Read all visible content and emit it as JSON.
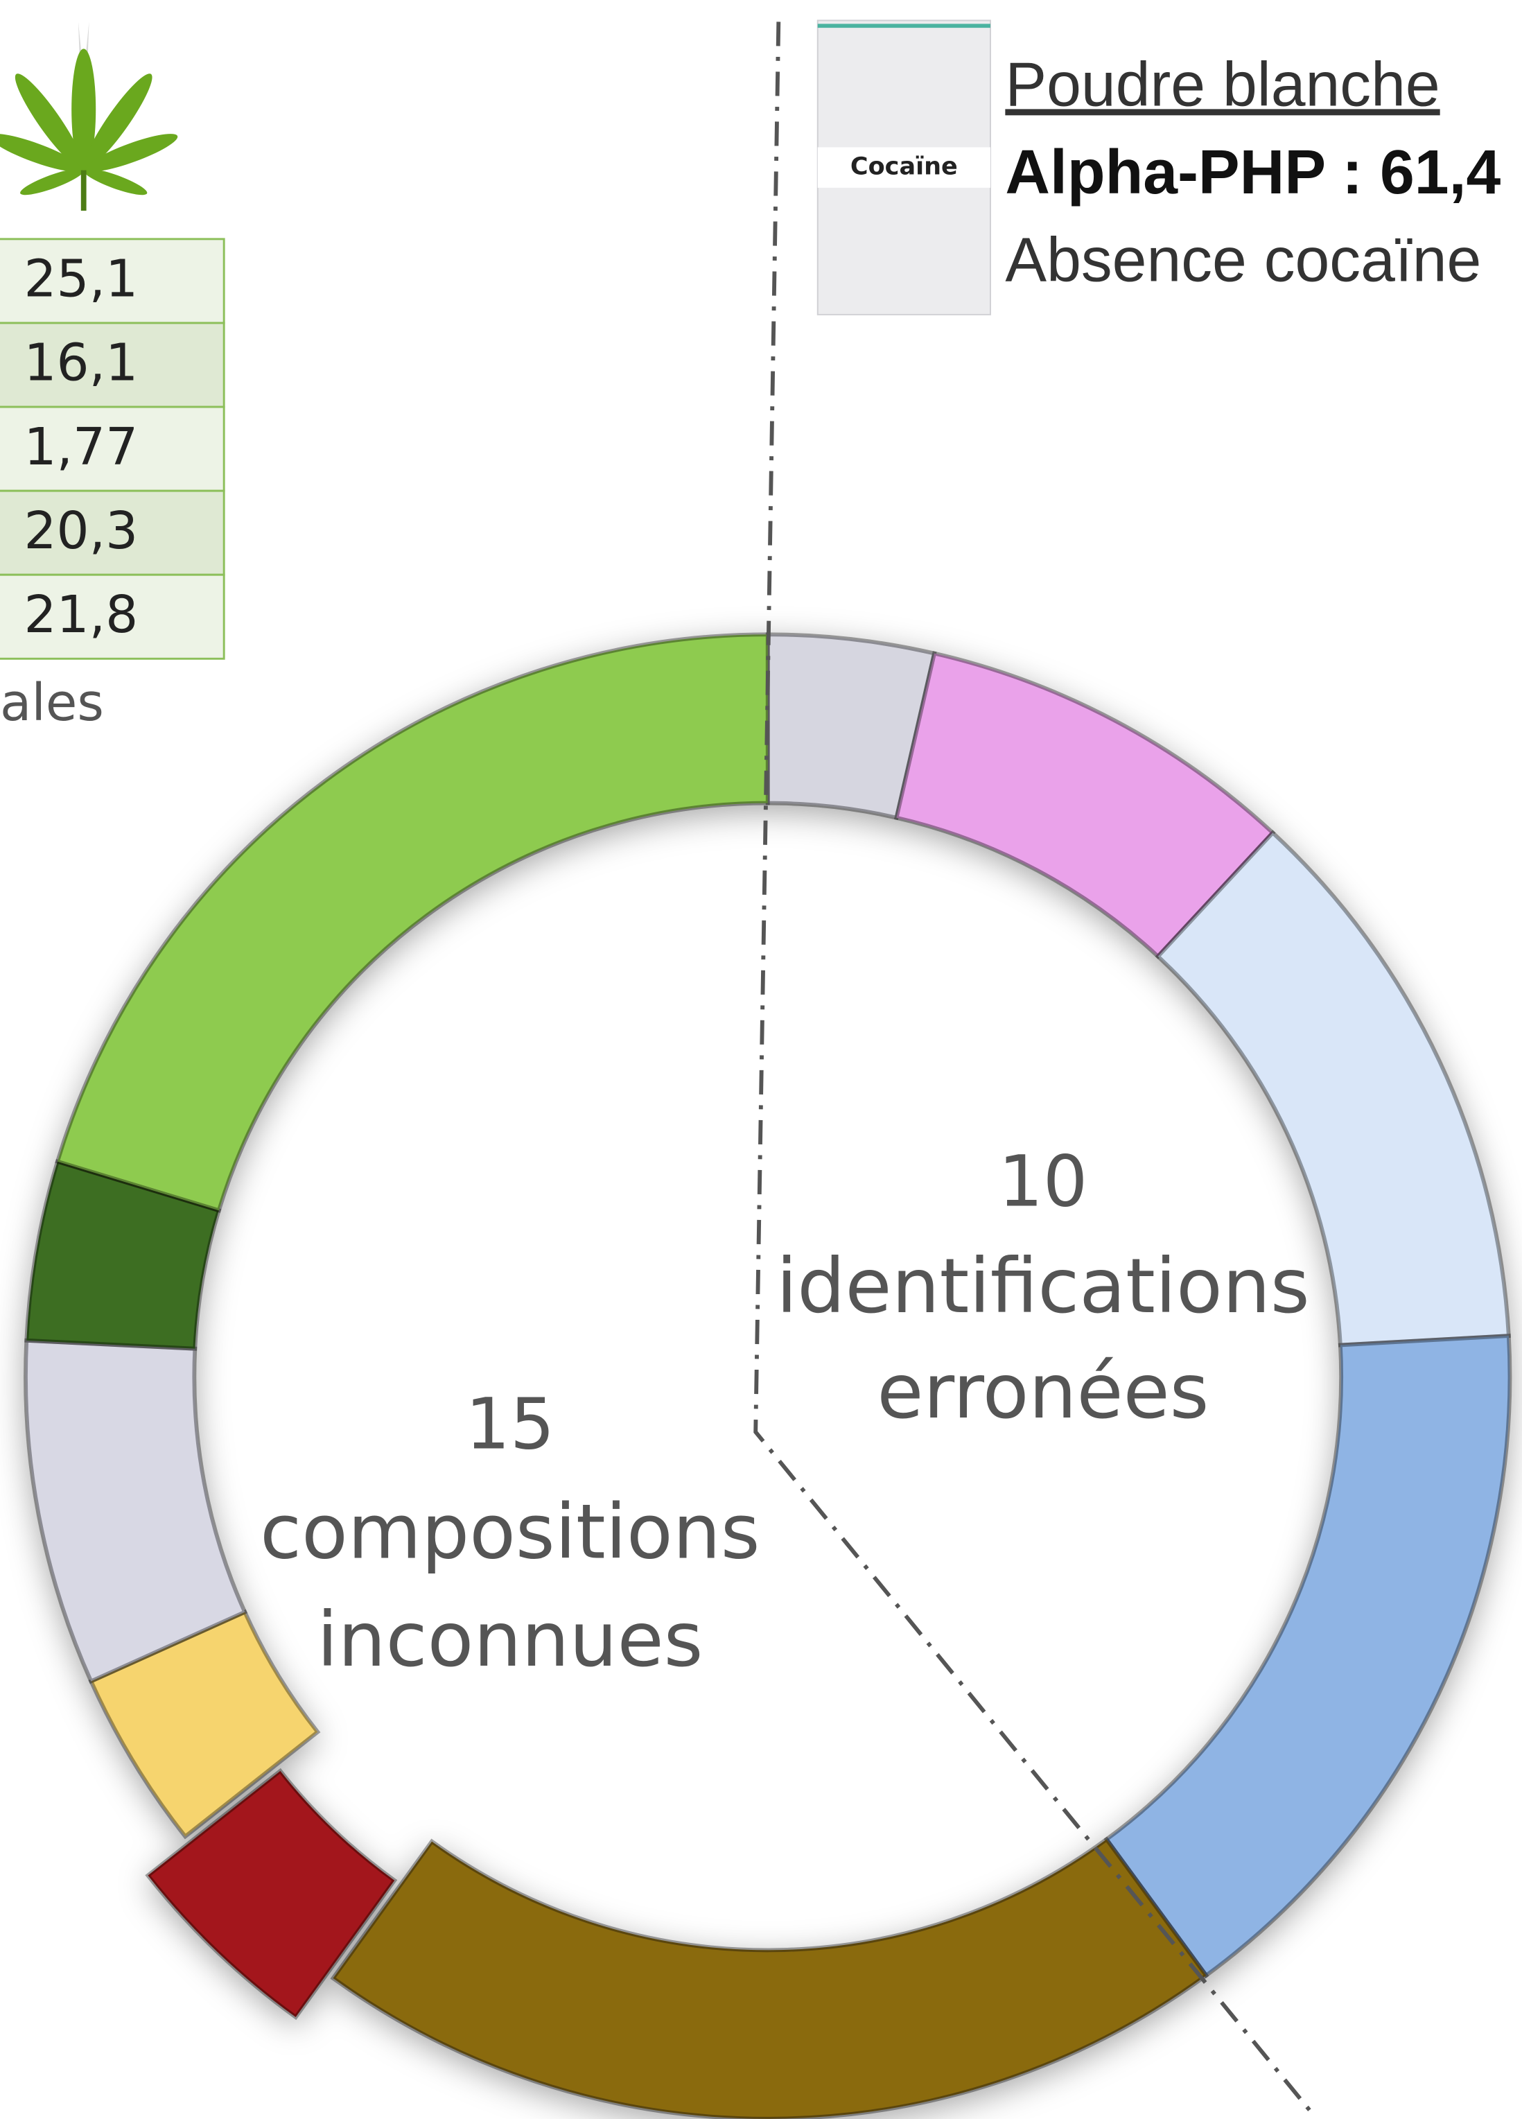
{
  "chart_data": {
    "type": "donut",
    "values": [
      3.6,
      8.3,
      12.2,
      15.8,
      20,
      4.4,
      3.9,
      7.5,
      3.9,
      20.3
    ],
    "colors": [
      "#d6d6e0",
      "#eaa2ea",
      "#d9e6f8",
      "#8fb4e4",
      "#8a6a0e",
      "#a3191b",
      "#f6d46e",
      "#d8d8e4",
      "#3e6e24",
      "#8ecb4f"
    ],
    "explode": [
      0,
      0,
      0,
      0,
      0,
      1,
      0,
      0,
      0,
      0
    ],
    "center_left": [
      "15",
      "compositions",
      "inconnues"
    ],
    "center_right": [
      "10",
      "identifications",
      "erronées"
    ]
  },
  "table": [
    "25,1",
    "16,1",
    "1,77",
    "20,3",
    "21,8"
  ],
  "table_caption": "ales",
  "bag_label": "Cocaïne",
  "note": {
    "title": "Poudre blanche",
    "line1": "Alpha-PHP : 61,4",
    "line2": "Absence cocaïne"
  }
}
